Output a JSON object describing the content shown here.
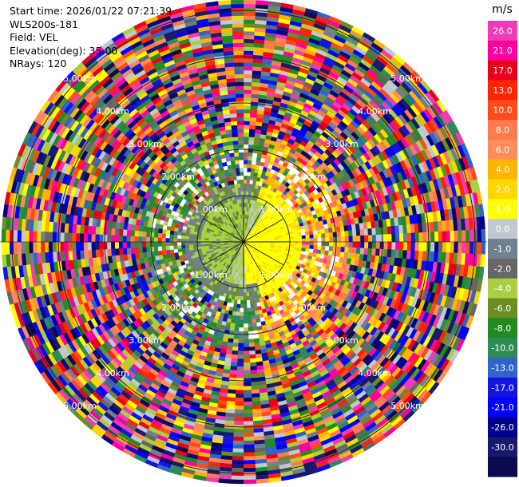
{
  "header": {
    "start_time": "Start time: 2026/01/22 07:21:39",
    "instrument": "WLS200s-181",
    "field": "Field: VEL",
    "elevation": "Elevation(deg): 35.00",
    "nrays": "NRays: 120"
  },
  "chart_data": {
    "type": "heatmap",
    "subtype": "polar-ppi",
    "field": "VEL",
    "units": "m/s",
    "nrays": 120,
    "elevation_deg": 35.0,
    "range_rings_km": [
      1,
      2,
      3,
      4,
      5
    ],
    "range_labels": [
      "1.00km",
      "2.00km",
      "3.00km",
      "4.00km",
      "5.00km"
    ],
    "max_range_km": 5.0,
    "colorbar": {
      "label": "m/s",
      "ticks": [
        "26.0",
        "21.0",
        "17.0",
        "13.0",
        "10.0",
        "8.0",
        "6.0",
        "4.0",
        "2.0",
        "1.0",
        "0.0",
        "-1.0",
        "-2.0",
        "-4.0",
        "-6.0",
        "-8.0",
        "-10.0",
        "-13.0",
        "-17.0",
        "-21.0",
        "-26.0",
        "-30.0"
      ],
      "colors": [
        "#f03cb4",
        "#ff00a0",
        "#e8001c",
        "#ff2400",
        "#ff4a1a",
        "#ff7a50",
        "#ff8c5a",
        "#ffb400",
        "#ffd700",
        "#ffff00",
        "#c0c8d0",
        "#708090",
        "#666666",
        "#a8d040",
        "#6b8e23",
        "#228b22",
        "#2e8b57",
        "#3264c8",
        "#1414e0",
        "#0000ff",
        "#00008b",
        "#191970",
        "#0a0a50"
      ]
    }
  }
}
